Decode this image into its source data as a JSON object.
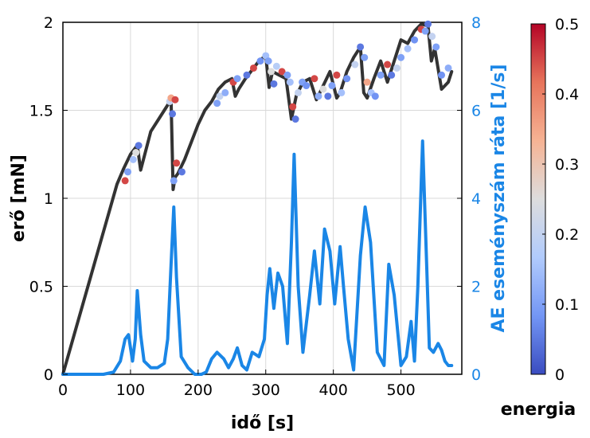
{
  "chart_data": {
    "type": "line",
    "xlabel": "idő [s]",
    "ylabel_left": "erő [mN]",
    "ylabel_right": "AE eseményszám ráta [1/s]",
    "colorbar_label": "energia",
    "xlim": [
      0,
      590
    ],
    "ylim_left": [
      0,
      2
    ],
    "ylim_right": [
      0,
      8
    ],
    "colorbar_range": [
      0,
      0.5
    ],
    "x_ticks": [
      "0",
      "100",
      "200",
      "300",
      "400",
      "500"
    ],
    "y_left_ticks": [
      "0",
      "0.5",
      "1",
      "1.5",
      "2"
    ],
    "y_right_ticks": [
      "0",
      "2",
      "4",
      "6",
      "8"
    ],
    "colorbar_ticks": [
      "0",
      "0.1",
      "0.2",
      "0.3",
      "0.4",
      "0.5"
    ],
    "grid": true,
    "colors": {
      "force_line": "#333333",
      "ae_rate_line": "#1a86e6",
      "right_axis": "#1a86e6",
      "colormap": [
        "#3a4cc0",
        "#7396f5",
        "#b1cbfc",
        "#dddddd",
        "#f6b394",
        "#e7745b",
        "#b40426"
      ]
    },
    "force": {
      "x": [
        0,
        20,
        40,
        60,
        80,
        90,
        100,
        110,
        115,
        130,
        150,
        160,
        163,
        166,
        170,
        180,
        190,
        200,
        210,
        220,
        230,
        240,
        250,
        255,
        260,
        270,
        280,
        290,
        300,
        305,
        310,
        320,
        330,
        338,
        345,
        355,
        365,
        375,
        385,
        395,
        405,
        410,
        420,
        430,
        440,
        445,
        450,
        460,
        470,
        480,
        490,
        500,
        510,
        520,
        530,
        540,
        545,
        550,
        560,
        570,
        575
      ],
      "y": [
        0,
        0.27,
        0.54,
        0.81,
        1.08,
        1.17,
        1.25,
        1.3,
        1.16,
        1.38,
        1.5,
        1.56,
        1.05,
        1.12,
        1.14,
        1.22,
        1.32,
        1.42,
        1.5,
        1.55,
        1.62,
        1.66,
        1.68,
        1.58,
        1.62,
        1.68,
        1.73,
        1.78,
        1.81,
        1.63,
        1.72,
        1.7,
        1.68,
        1.45,
        1.58,
        1.66,
        1.68,
        1.56,
        1.64,
        1.72,
        1.57,
        1.6,
        1.72,
        1.8,
        1.86,
        1.6,
        1.57,
        1.68,
        1.78,
        1.66,
        1.78,
        1.9,
        1.88,
        1.95,
        1.99,
        1.98,
        1.78,
        1.85,
        1.62,
        1.66,
        1.72
      ]
    },
    "ae_rate": {
      "x": [
        0,
        60,
        75,
        85,
        92,
        97,
        103,
        107,
        110,
        115,
        120,
        130,
        140,
        150,
        155,
        160,
        164,
        168,
        175,
        185,
        195,
        205,
        212,
        220,
        228,
        238,
        245,
        252,
        258,
        265,
        272,
        280,
        290,
        298,
        302,
        306,
        312,
        318,
        325,
        332,
        338,
        342,
        348,
        355,
        365,
        372,
        380,
        387,
        395,
        402,
        410,
        415,
        422,
        430,
        440,
        447,
        455,
        465,
        475,
        482,
        490,
        500,
        508,
        515,
        520,
        525,
        532,
        538,
        542,
        548,
        555,
        560,
        565,
        570,
        575
      ],
      "y": [
        0,
        0,
        0.05,
        0.3,
        0.8,
        0.9,
        0.3,
        0.8,
        1.9,
        0.9,
        0.3,
        0.15,
        0.15,
        0.25,
        0.8,
        2.5,
        3.8,
        2.2,
        0.4,
        0.15,
        0,
        0,
        0.05,
        0.35,
        0.5,
        0.35,
        0.15,
        0.35,
        0.6,
        0.2,
        0.1,
        0.5,
        0.4,
        0.8,
        1.8,
        2.4,
        1.5,
        2.3,
        2.0,
        0.7,
        3.0,
        5.0,
        2.0,
        0.5,
        1.8,
        2.8,
        1.6,
        3.3,
        2.8,
        1.6,
        2.9,
        2.0,
        0.8,
        0.1,
        2.7,
        3.8,
        3.0,
        0.5,
        0.2,
        2.5,
        1.8,
        0.2,
        0.4,
        1.2,
        0.3,
        2.0,
        5.3,
        2.5,
        0.6,
        0.5,
        0.7,
        0.55,
        0.3,
        0.2,
        0.2
      ]
    },
    "ae_events": {
      "x": [
        92,
        96,
        104,
        108,
        112,
        158,
        160,
        162,
        164,
        166,
        168,
        176,
        228,
        232,
        240,
        252,
        258,
        272,
        282,
        292,
        300,
        304,
        308,
        312,
        316,
        324,
        332,
        336,
        340,
        344,
        348,
        354,
        360,
        372,
        378,
        385,
        392,
        398,
        405,
        412,
        420,
        432,
        440,
        446,
        450,
        456,
        462,
        470,
        480,
        486,
        494,
        500,
        510,
        520,
        530,
        536,
        540,
        546,
        552,
        560,
        570
      ],
      "y": [
        1.1,
        1.15,
        1.22,
        1.26,
        1.3,
        1.55,
        1.57,
        1.48,
        1.1,
        1.56,
        1.2,
        1.15,
        1.54,
        1.58,
        1.6,
        1.66,
        1.68,
        1.7,
        1.74,
        1.78,
        1.81,
        1.78,
        1.72,
        1.65,
        1.75,
        1.72,
        1.7,
        1.66,
        1.52,
        1.45,
        1.6,
        1.66,
        1.64,
        1.68,
        1.58,
        1.62,
        1.58,
        1.64,
        1.7,
        1.6,
        1.68,
        1.76,
        1.86,
        1.8,
        1.66,
        1.6,
        1.58,
        1.7,
        1.76,
        1.7,
        1.74,
        1.8,
        1.85,
        1.9,
        1.96,
        1.95,
        1.99,
        1.92,
        1.86,
        1.7,
        1.74
      ],
      "energy": [
        0.45,
        0.1,
        0.15,
        0.25,
        0.05,
        0.2,
        0.35,
        0.05,
        0.1,
        0.45,
        0.45,
        0.05,
        0.1,
        0.2,
        0.12,
        0.45,
        0.1,
        0.05,
        0.45,
        0.08,
        0.15,
        0.1,
        0.25,
        0.05,
        0.18,
        0.45,
        0.1,
        0.15,
        0.45,
        0.05,
        0.2,
        0.1,
        0.08,
        0.45,
        0.12,
        0.25,
        0.05,
        0.1,
        0.45,
        0.15,
        0.08,
        0.2,
        0.05,
        0.1,
        0.35,
        0.15,
        0.08,
        0.1,
        0.45,
        0.05,
        0.2,
        0.1,
        0.15,
        0.08,
        0.45,
        0.1,
        0.05,
        0.2,
        0.1,
        0.08,
        0.12
      ]
    }
  }
}
